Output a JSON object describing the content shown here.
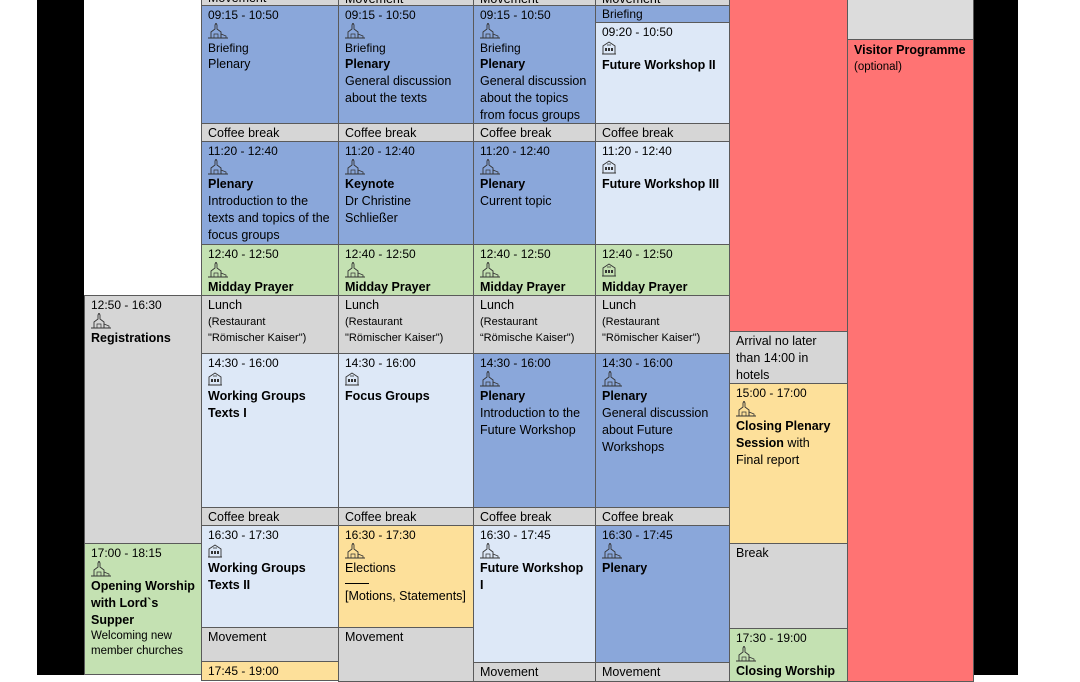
{
  "colors": {
    "plenary": "#8aa7da",
    "workshop": "#dde8f7",
    "break": "#d6d6d6",
    "prayer": "#c4e1b2",
    "highlight": "#fde09a",
    "visitor": "#ff7373"
  },
  "icons": {
    "church": "church-icon",
    "building": "building-icon"
  },
  "common": {
    "movement": "Movement",
    "coffee_break": "Coffee break",
    "briefing": "Briefing",
    "plenary": "Plenary",
    "midday_prayer": "Midday Prayer",
    "lunch": "Lunch",
    "restaurant_1": "(Restaurant",
    "restaurant_2": "\"Römischer Kaiser\")",
    "restaurant_2b": "“Römische Kaiser\")"
  },
  "col_a": {
    "reg_time": "12:50 - 16:30",
    "registrations": "Registrations",
    "ow_time": "17:00 - 18:15",
    "ow_title": "Opening Worship with Lord`s Supper",
    "ow_note": "Welcoming new member churches"
  },
  "col_b": {
    "t1": "09:15 - 10:50",
    "t2": "11:20 - 12:40",
    "t2_desc": "Introduction to the texts and topics of the focus groups",
    "t3": "12:40 - 12:50",
    "t4": "14:30 - 16:00",
    "wg1": "Working Groups Texts I",
    "t5": "16:30 - 17:30",
    "wg2": "Working Groups Texts II",
    "t6": "17:45 - 19:00"
  },
  "col_c": {
    "t1": "09:15 - 10:50",
    "t1_desc": "General discussion about the texts",
    "t2": "11:20 - 12:40",
    "keynote": "Keynote",
    "speaker": "Dr Christine Schließer",
    "t3": "12:40 - 12:50",
    "t4": "14:30 - 16:00",
    "focus": "Focus Groups",
    "t5": "16:30 - 17:30",
    "elections": "Elections",
    "motions": "[Motions, Statements]"
  },
  "col_d": {
    "t1": "09:15 - 10:50",
    "t1_desc": "General discussion about the topics from focus groups",
    "t2": "11:20 - 12:40",
    "t2_desc": "Current topic",
    "t3": "12:40 - 12:50",
    "t4": "14:30 - 16:00",
    "t4_desc": "Introduction to the Future Workshop",
    "t5": "16:30 - 17:45",
    "fw1": "Future Workshop I"
  },
  "col_e": {
    "t1": "09:20 - 10:50",
    "fw2": "Future Workshop II",
    "t2": "11:20 - 12:40",
    "fw3": "Future Workshop III",
    "t3": "12:40 - 12:50",
    "t4": "14:30 - 16:00",
    "t4_desc": "General discussion about Future Workshops",
    "t5": "16:30 - 17:45"
  },
  "col_f": {
    "arrival": "Arrival no later than 14:00 in hotels",
    "cp_time": "15:00 - 17:00",
    "cp_title": "Closing Plenary Session",
    "cp_with": "with",
    "cp_rest": "Final report",
    "break": "Break",
    "cw_time": "17:30 - 19:00",
    "cw_title": "Closing Worship"
  },
  "col_g": {
    "visitor": "Visitor Programme",
    "optional": "(optional)"
  }
}
